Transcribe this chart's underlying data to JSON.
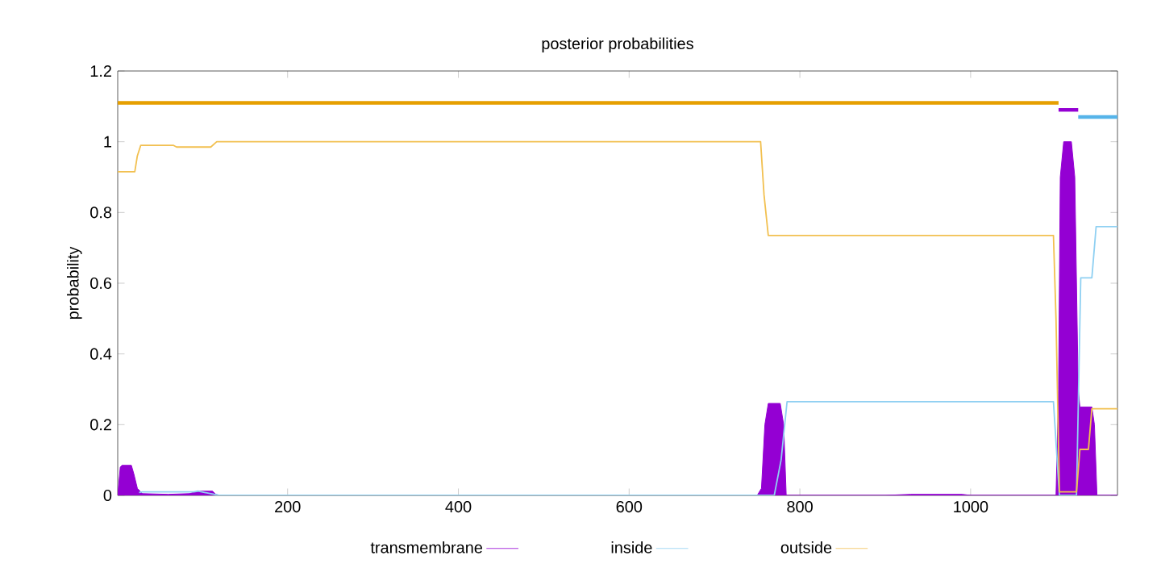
{
  "chart_data": {
    "type": "line",
    "title": "posterior probabilities",
    "ylabel": "probability",
    "xlim": [
      1,
      1172
    ],
    "ylim": [
      0,
      1.2
    ],
    "xticks": [
      200,
      400,
      600,
      800,
      1000
    ],
    "yticks": [
      0,
      0.2,
      0.4,
      0.6,
      0.8,
      1,
      1.2
    ],
    "legend": "bottom",
    "grid": false,
    "series": [
      {
        "name": "transmembrane",
        "type": "area",
        "color": "#9400d3",
        "x": [
          1,
          4,
          6,
          17,
          20,
          24,
          30,
          60,
          85,
          95,
          100,
          112,
          116,
          120,
          750,
          755,
          759,
          763,
          777,
          781,
          784,
          900,
          930,
          990,
          1000,
          1100,
          1103,
          1105,
          1109,
          1118,
          1122,
          1126,
          1128,
          1142,
          1145,
          1148,
          1172
        ],
        "values": [
          0,
          0.08,
          0.085,
          0.085,
          0.06,
          0.02,
          0.005,
          0.003,
          0.005,
          0.012,
          0.012,
          0.012,
          0.003,
          0,
          0,
          0.02,
          0.2,
          0.26,
          0.26,
          0.2,
          0,
          0,
          0.003,
          0.003,
          0,
          0,
          0.3,
          0.9,
          1.0,
          1.0,
          0.9,
          0.3,
          0.25,
          0.25,
          0.2,
          0,
          0
        ]
      },
      {
        "name": "inside",
        "color": "#8fd0f2",
        "x": [
          26,
          30,
          90,
          95,
          120,
          770,
          778,
          785,
          1097,
          1100,
          1104,
          1124,
          1129,
          1142,
          1147,
          1172
        ],
        "values": [
          0.008,
          0.01,
          0.01,
          0.012,
          0,
          0,
          0.1,
          0.265,
          0.265,
          0.15,
          0,
          0,
          0.615,
          0.615,
          0.76,
          0.76
        ]
      },
      {
        "name": "outside",
        "color": "#f2c050",
        "x": [
          1,
          21,
          24,
          28,
          66,
          70,
          110,
          117,
          754,
          758,
          763,
          1097,
          1100,
          1104,
          1124,
          1128,
          1138,
          1142,
          1172
        ],
        "values": [
          0.915,
          0.915,
          0.96,
          0.99,
          0.99,
          0.985,
          0.985,
          1.0,
          1.0,
          0.85,
          0.735,
          0.735,
          0.5,
          0.01,
          0.01,
          0.13,
          0.13,
          0.245,
          0.245
        ]
      },
      {
        "color": "#e69f00",
        "x": [
          1,
          1103
        ],
        "values": [
          1.11,
          1.11
        ]
      },
      {
        "color": "#9400d3",
        "x": [
          1103,
          1126
        ],
        "values": [
          1.09,
          1.09
        ]
      },
      {
        "color": "#56b4e9",
        "x": [
          1126,
          1172
        ],
        "values": [
          1.07,
          1.07
        ]
      }
    ]
  }
}
